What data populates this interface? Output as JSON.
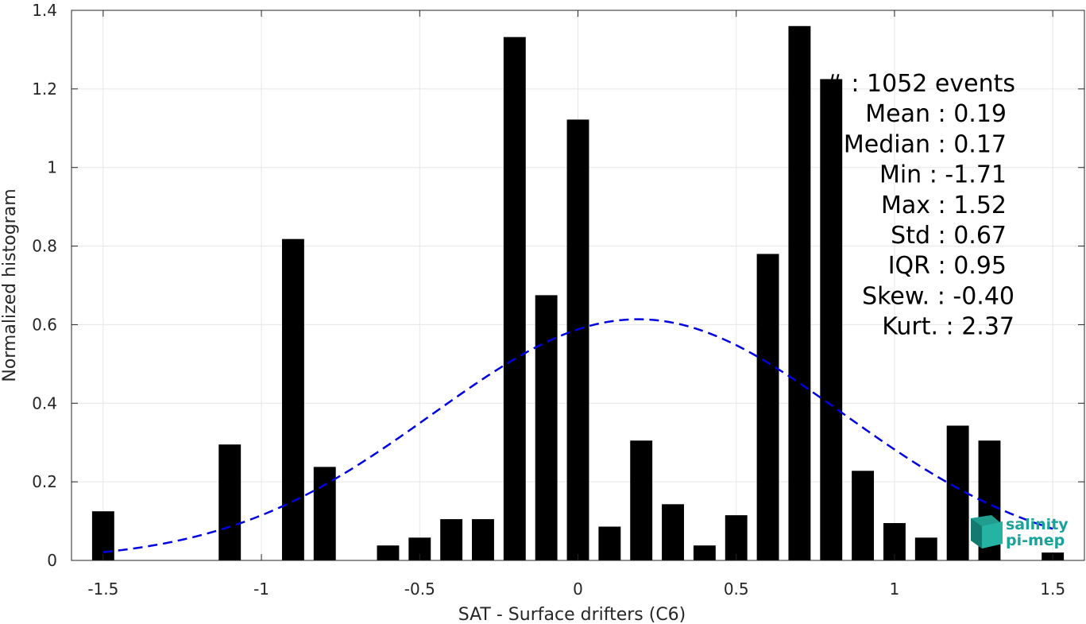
{
  "chart_data": {
    "type": "bar",
    "xlabel": "SAT - Surface drifters (C6)",
    "ylabel": "Normalized histogram",
    "xlim": [
      -1.6,
      1.6
    ],
    "ylim": [
      0,
      1.4
    ],
    "xticks": [
      "-1.5",
      "-1",
      "-0.5",
      "0",
      "0.5",
      "1",
      "1.5"
    ],
    "xtick_values": [
      -1.5,
      -1,
      -0.5,
      0,
      0.5,
      1,
      1.5
    ],
    "yticks": [
      "0",
      "0.2",
      "0.4",
      "0.6",
      "0.8",
      "1",
      "1.2",
      "1.4"
    ],
    "ytick_values": [
      0,
      0.2,
      0.4,
      0.6,
      0.8,
      1.0,
      1.2,
      1.4
    ],
    "grid": true,
    "bar_width": 0.07,
    "bars": {
      "x": [
        -1.5,
        -1.1,
        -0.9,
        -0.8,
        -0.6,
        -0.5,
        -0.4,
        -0.3,
        -0.2,
        -0.1,
        0.0,
        0.1,
        0.2,
        0.3,
        0.4,
        0.5,
        0.6,
        0.7,
        0.8,
        0.9,
        1.0,
        1.1,
        1.2,
        1.3,
        1.5
      ],
      "values": [
        0.125,
        0.295,
        0.818,
        0.238,
        0.038,
        0.058,
        0.105,
        0.105,
        1.332,
        0.675,
        1.122,
        0.086,
        0.305,
        0.143,
        0.038,
        0.115,
        0.78,
        1.36,
        1.225,
        0.228,
        0.095,
        0.058,
        0.343,
        0.305,
        0.02
      ],
      "color": "#000000"
    },
    "fit_curve": {
      "style": "dashed",
      "color": "#0000e0",
      "mean": 0.19,
      "std": 0.65,
      "x_range": [
        -1.5,
        1.5
      ]
    },
    "stats": [
      "# : 1052 events",
      "Mean : 0.19",
      "Median : 0.17",
      "Min : -1.71",
      "Max : 1.52",
      "Std : 0.67",
      "IQR : 0.95",
      "Skew. : -0.40",
      "Kurt. : 2.37"
    ]
  },
  "logo": {
    "line1": "salinity",
    "line2": "pi-mep",
    "color": "#1aa39a"
  }
}
